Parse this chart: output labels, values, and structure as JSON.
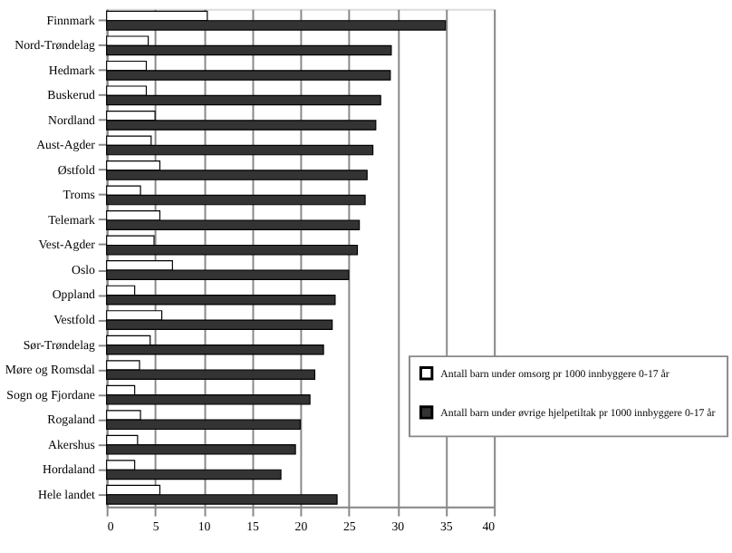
{
  "chart_data": {
    "type": "bar",
    "orientation": "horizontal",
    "categories": [
      "Finnmark",
      "Nord-Trøndelag",
      "Hedmark",
      "Buskerud",
      "Nordland",
      "Aust-Agder",
      "Østfold",
      "Troms",
      "Telemark",
      "Vest-Agder",
      "Oslo",
      "Oppland",
      "Vestfold",
      "Sør-Trøndelag",
      "Møre og Romsdal",
      "Sogn og Fjordane",
      "Rogaland",
      "Akershus",
      "Hordaland",
      "Hele landet"
    ],
    "series": [
      {
        "name": "Antall barn under omsorg pr 1000 innbyggere 0-17 år",
        "color": "#ffffff",
        "values": [
          10.4,
          4.3,
          4.1,
          4.1,
          5.0,
          4.6,
          5.5,
          3.5,
          5.5,
          4.9,
          6.8,
          2.9,
          5.7,
          4.5,
          3.4,
          2.9,
          3.5,
          3.2,
          2.9,
          5.5
        ]
      },
      {
        "name": "Antall barn under øvrige hjelpetiltak pr 1000 innbyggere 0-17 år",
        "color": "#333333",
        "values": [
          35.0,
          29.4,
          29.3,
          28.3,
          27.8,
          27.5,
          26.9,
          26.7,
          26.1,
          25.9,
          25.0,
          23.6,
          23.3,
          22.4,
          21.5,
          21.0,
          20.0,
          19.5,
          18.0,
          23.8
        ]
      }
    ],
    "xlim": [
      0,
      40
    ],
    "xticks": [
      0,
      5,
      10,
      15,
      20,
      25,
      30,
      35,
      40
    ],
    "grid": "x",
    "legend": "right"
  }
}
